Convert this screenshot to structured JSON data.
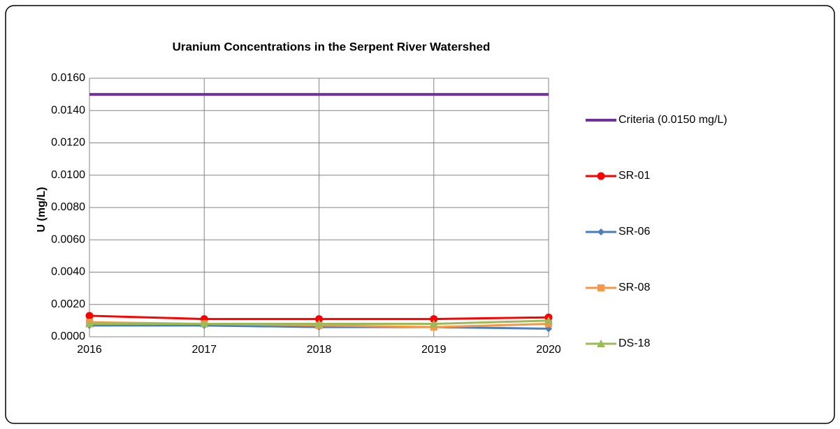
{
  "chart_data": {
    "type": "line",
    "title": "Uranium Concentrations in the Serpent River Watershed",
    "y_label": "U (mg/L)",
    "x": [
      2016,
      2017,
      2018,
      2019,
      2020
    ],
    "xlim": [
      2016,
      2020
    ],
    "xticks": [
      2016,
      2017,
      2018,
      2019,
      2020
    ],
    "ylim": [
      0,
      0.016
    ],
    "yticks": [
      {
        "value": 0,
        "label": "0.0000"
      },
      {
        "value": 0.002,
        "label": "0.0020"
      },
      {
        "value": 0.004,
        "label": "0.0040"
      },
      {
        "value": 0.006,
        "label": "0.0060"
      },
      {
        "value": 0.008,
        "label": "0.0080"
      },
      {
        "value": 0.01,
        "label": "0.0100"
      },
      {
        "value": 0.012,
        "label": "0.0120"
      },
      {
        "value": 0.014,
        "label": "0.0140"
      },
      {
        "value": 0.016,
        "label": "0.0160"
      }
    ],
    "grid": true,
    "legend": "right",
    "series": [
      {
        "name": "Criteria (0.0150 mg/L)",
        "color": "#7030a0",
        "marker": "none",
        "values": [
          0.015,
          0.015,
          0.015,
          0.015,
          0.015
        ]
      },
      {
        "name": "SR-01",
        "color": "#ff0000",
        "marker": "circle",
        "values": [
          0.0013,
          0.0011,
          0.0011,
          0.0011,
          0.0012
        ]
      },
      {
        "name": "SR-06",
        "color": "#4a7ebb",
        "marker": "diamond",
        "values": [
          0.0007,
          0.0007,
          0.0006,
          0.0006,
          0.0005
        ]
      },
      {
        "name": "SR-08",
        "color": "#f79646",
        "marker": "square",
        "values": [
          0.0009,
          0.0008,
          0.0007,
          0.0006,
          0.0008
        ]
      },
      {
        "name": "DS-18",
        "color": "#9bbb59",
        "marker": "triangle",
        "values": [
          0.0008,
          0.0008,
          0.0008,
          0.0008,
          0.001
        ]
      }
    ]
  }
}
